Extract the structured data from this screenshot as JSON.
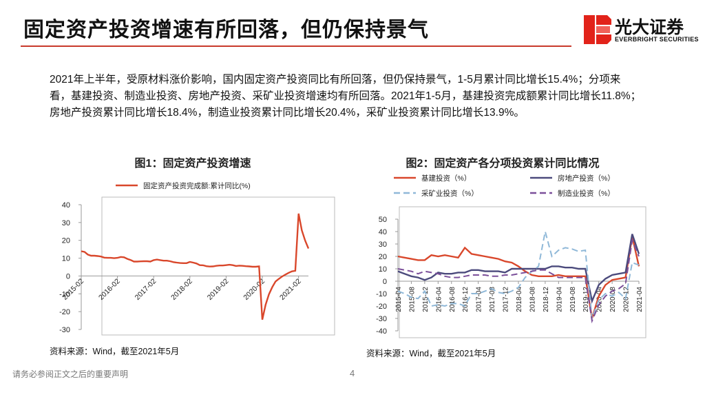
{
  "header": {
    "title": "固定资产投资增速有所回落，但仍保持景气",
    "logo_cn": "光大证券",
    "logo_en": "EVERBRIGHT SECURITIES"
  },
  "paragraph": "2021年上半年，受原材料涨价影响，国内固定资产投资同比有所回落，但仍保持景气，1-5月累计同比增长15.4%；分项来看，基建投资、制造业投资、房地产投资、采矿业投资增速均有所回落。2021年1-5月，基建投资完成额累计同比增长11.8%；房地产投资累计同比增长18.4%，制造业投资累计同比增长20.4%，采矿业投资累计同比增长13.9%。",
  "footer": {
    "disclaimer": "请务必参阅正文之后的重要声明",
    "page": "4"
  },
  "chart_data": [
    {
      "type": "line",
      "title": "图1：固定资产投资增速",
      "source": "资料来源：Wind，截至2021年5月",
      "categories": [
        "2015-02",
        null,
        null,
        null,
        null,
        null,
        null,
        null,
        null,
        null,
        null,
        "2016-02",
        null,
        null,
        null,
        null,
        null,
        null,
        null,
        null,
        null,
        null,
        "2017-02",
        null,
        null,
        null,
        null,
        null,
        null,
        null,
        null,
        null,
        null,
        "2018-02",
        null,
        null,
        null,
        null,
        null,
        null,
        null,
        null,
        null,
        null,
        "2019-02",
        null,
        null,
        null,
        null,
        null,
        null,
        null,
        null,
        null,
        null,
        "2020-02",
        null,
        null,
        null,
        null,
        null,
        null,
        null,
        null,
        null,
        null,
        "2021-02",
        null,
        null,
        null
      ],
      "series": [
        {
          "name": "固定资产投资完成额:累计同比(%)",
          "color": "#d9472b",
          "style": "solid",
          "values": [
            13.9,
            13.5,
            12.0,
            11.4,
            11.4,
            11.2,
            10.9,
            10.3,
            10.2,
            10.2,
            10.0,
            10.2,
            10.7,
            10.5,
            9.6,
            9.0,
            8.1,
            8.1,
            8.2,
            8.3,
            8.3,
            8.1,
            8.9,
            9.2,
            8.9,
            8.6,
            8.6,
            8.3,
            7.8,
            7.5,
            7.3,
            7.2,
            7.2,
            7.9,
            7.5,
            7.0,
            6.1,
            6.0,
            5.5,
            5.3,
            5.4,
            5.7,
            5.9,
            5.9,
            6.1,
            6.3,
            6.1,
            5.6,
            5.8,
            5.7,
            5.5,
            5.4,
            5.2,
            5.2,
            5.4,
            -24.5,
            -16.1,
            -10.3,
            -6.3,
            -3.1,
            -1.6,
            -0.3,
            0.8,
            1.8,
            2.6,
            2.9,
            35.0,
            25.6,
            19.9,
            15.4
          ]
        }
      ],
      "ylim": [
        -30,
        40
      ],
      "yticks": [
        -30,
        -20,
        -10,
        0,
        10,
        20,
        30,
        40
      ],
      "legend": "top"
    },
    {
      "type": "line",
      "title": "图2：固定资产各分项投资累计同比情况",
      "source": "资料来源：Wind，截至2021年5月",
      "categories": [
        "2015-04",
        null,
        "2015-08",
        null,
        "2015-12",
        null,
        "2016-04",
        null,
        "2016-08",
        null,
        "2016-12",
        null,
        "2017-04",
        null,
        "2017-08",
        null,
        "2017-12",
        null,
        "2018-04",
        null,
        "2018-08",
        null,
        "2018-12",
        null,
        "2019-04",
        null,
        "2019-08",
        null,
        "2019-12",
        null,
        "2020-04",
        null,
        "2020-08",
        null,
        "2020-12",
        null,
        "2021-04"
      ],
      "series": [
        {
          "name": "基建投资（%）",
          "color": "#d9472b",
          "style": "solid",
          "values": [
            20,
            19,
            18,
            17,
            17,
            21,
            20,
            21,
            20,
            19,
            27,
            22,
            21,
            20,
            19,
            18,
            16,
            15,
            12,
            8,
            5,
            4,
            4,
            4,
            5,
            4,
            4,
            4,
            4,
            -30,
            -12,
            -3,
            1,
            2,
            3,
            36,
            12
          ]
        },
        {
          "name": "房地产投资（%）",
          "color": "#4b4a7c",
          "style": "solid",
          "values": [
            8,
            6,
            4,
            3,
            1,
            3,
            7,
            6,
            6,
            7,
            7,
            9,
            9,
            8,
            8,
            8,
            7,
            10,
            10,
            10,
            10,
            10,
            10,
            12,
            12,
            11,
            11,
            10,
            10,
            -16,
            -3,
            2,
            5,
            6,
            7,
            38,
            22
          ]
        },
        {
          "name": "采矿业投资（%）",
          "color": "#8fb8d8",
          "style": "dashed",
          "values": [
            -8,
            -10,
            -13,
            -14,
            -8,
            -20,
            -19,
            -20,
            -18,
            -18,
            -20,
            -10,
            -10,
            -8,
            -6,
            -9,
            -10,
            -8,
            -5,
            3,
            8,
            12,
            40,
            20,
            25,
            27,
            26,
            24,
            25,
            -30,
            -15,
            -10,
            -12,
            -9,
            -14,
            15,
            13
          ]
        },
        {
          "name": "制造业投资（%）",
          "color": "#7b4f9a",
          "style": "dashed",
          "values": [
            10,
            9,
            8,
            6,
            8,
            7,
            6,
            4,
            3,
            3,
            4,
            5,
            5,
            5,
            4,
            4,
            5,
            5,
            6,
            7,
            8,
            9,
            9,
            6,
            3,
            3,
            3,
            3,
            3,
            -32,
            -19,
            -12,
            -8,
            -6,
            -2,
            33,
            20
          ]
        }
      ],
      "ylim": [
        -40,
        50
      ],
      "yticks": [
        -40,
        -30,
        -20,
        -10,
        0,
        10,
        20,
        30,
        40,
        50
      ],
      "legend": "top"
    }
  ]
}
